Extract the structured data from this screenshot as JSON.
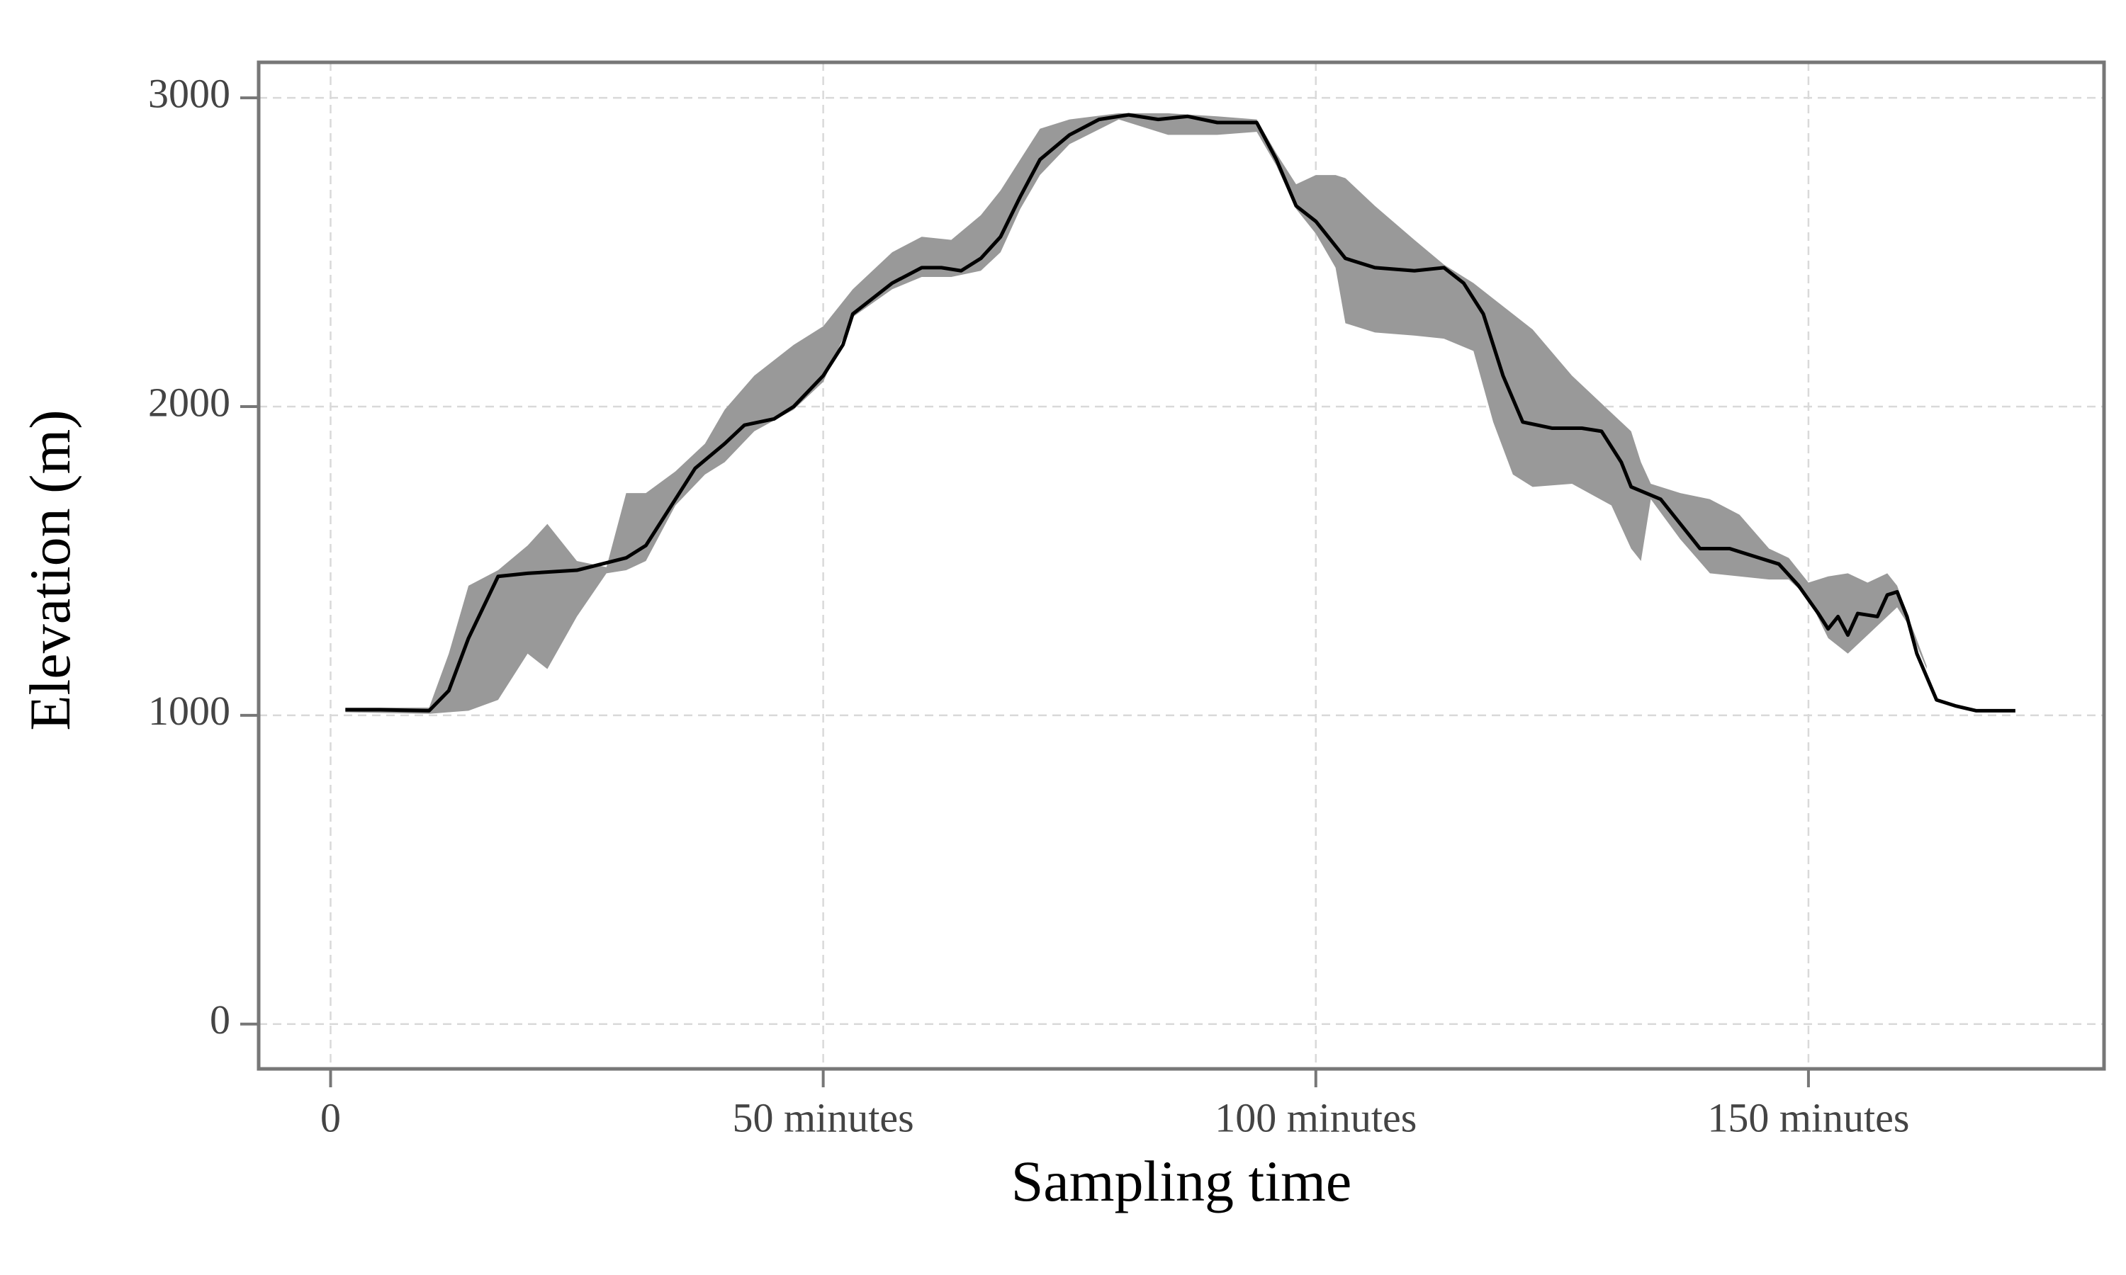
{
  "chart_data": {
    "type": "line",
    "xlabel": "Sampling time",
    "ylabel": "Elevation (m)",
    "xlim": [
      -7.3,
      180
    ],
    "ylim": [
      -145,
      3115
    ],
    "xticks": [
      0,
      {
        "value": 50,
        "label": "50 minutes"
      },
      {
        "value": 100,
        "label": "100 minutes"
      },
      {
        "value": 150,
        "label": "150 minutes"
      }
    ],
    "yticks": [
      0,
      1000,
      2000,
      3000
    ],
    "grid": true,
    "x": [
      1.5,
      5,
      8,
      10,
      12,
      14,
      17,
      20,
      25,
      30,
      32,
      35,
      37,
      40,
      42,
      45,
      47,
      50,
      52,
      53,
      55,
      57,
      60,
      62,
      64,
      66,
      68,
      70,
      72,
      75,
      78,
      81,
      84,
      87,
      90,
      94,
      96,
      98,
      100,
      103,
      106,
      110,
      113,
      115,
      117,
      119,
      121,
      124,
      127,
      129,
      131,
      132,
      135,
      137,
      139,
      142,
      145,
      147,
      149,
      151,
      152,
      153,
      154,
      155,
      157,
      158,
      159,
      160,
      161,
      163,
      165,
      167,
      171
    ],
    "series": [
      {
        "color": "#000000",
        "values": [
          1018,
          1018,
          1016,
          1015,
          1080,
          1250,
          1450,
          1460,
          1470,
          1510,
          1550,
          1700,
          1800,
          1880,
          1940,
          1960,
          2000,
          2100,
          2200,
          2300,
          2350,
          2400,
          2450,
          2450,
          2440,
          2480,
          2550,
          2680,
          2800,
          2880,
          2930,
          2945,
          2930,
          2940,
          2920,
          2920,
          2800,
          2650,
          2600,
          2480,
          2450,
          2440,
          2450,
          2400,
          2300,
          2100,
          1950,
          1930,
          1930,
          1920,
          1820,
          1740,
          1700,
          1620,
          1540,
          1540,
          1510,
          1490,
          1420,
          1330,
          1280,
          1320,
          1260,
          1330,
          1320,
          1390,
          1400,
          1320,
          1200,
          1050,
          1030,
          1015,
          1015
        ]
      }
    ],
    "band": {
      "color": "#999999",
      "x": [
        1.5,
        10,
        12,
        14,
        17,
        20,
        22,
        25,
        28,
        30,
        32,
        35,
        38,
        40,
        43,
        47,
        50,
        53,
        57,
        60,
        63,
        66,
        68,
        70,
        72,
        75,
        80,
        85,
        90,
        94,
        96,
        98,
        100,
        102,
        103,
        106,
        110,
        113,
        116,
        118,
        120,
        122,
        126,
        130,
        132,
        133,
        134,
        137,
        140,
        143,
        146,
        148,
        150,
        152,
        154,
        156,
        158,
        159,
        160,
        162
      ],
      "lower": [
        1010,
        1005,
        1010,
        1015,
        1050,
        1200,
        1150,
        1320,
        1460,
        1470,
        1500,
        1680,
        1780,
        1820,
        1920,
        1990,
        2080,
        2290,
        2380,
        2420,
        2420,
        2440,
        2500,
        2640,
        2750,
        2850,
        2930,
        2880,
        2880,
        2890,
        2780,
        2640,
        2560,
        2450,
        2270,
        2240,
        2230,
        2220,
        2180,
        1950,
        1780,
        1740,
        1750,
        1680,
        1540,
        1500,
        1700,
        1570,
        1460,
        1450,
        1440,
        1440,
        1380,
        1250,
        1200,
        1260,
        1320,
        1350,
        1300,
        1150
      ],
      "upper": [
        1025,
        1025,
        1200,
        1420,
        1470,
        1550,
        1620,
        1500,
        1480,
        1720,
        1720,
        1790,
        1880,
        1990,
        2100,
        2200,
        2260,
        2380,
        2500,
        2550,
        2540,
        2620,
        2700,
        2800,
        2900,
        2930,
        2950,
        2950,
        2940,
        2930,
        2820,
        2720,
        2750,
        2750,
        2740,
        2650,
        2540,
        2460,
        2400,
        2350,
        2300,
        2250,
        2100,
        1980,
        1920,
        1820,
        1750,
        1720,
        1700,
        1650,
        1540,
        1510,
        1430,
        1450,
        1460,
        1430,
        1460,
        1420,
        1330,
        1160
      ]
    }
  }
}
